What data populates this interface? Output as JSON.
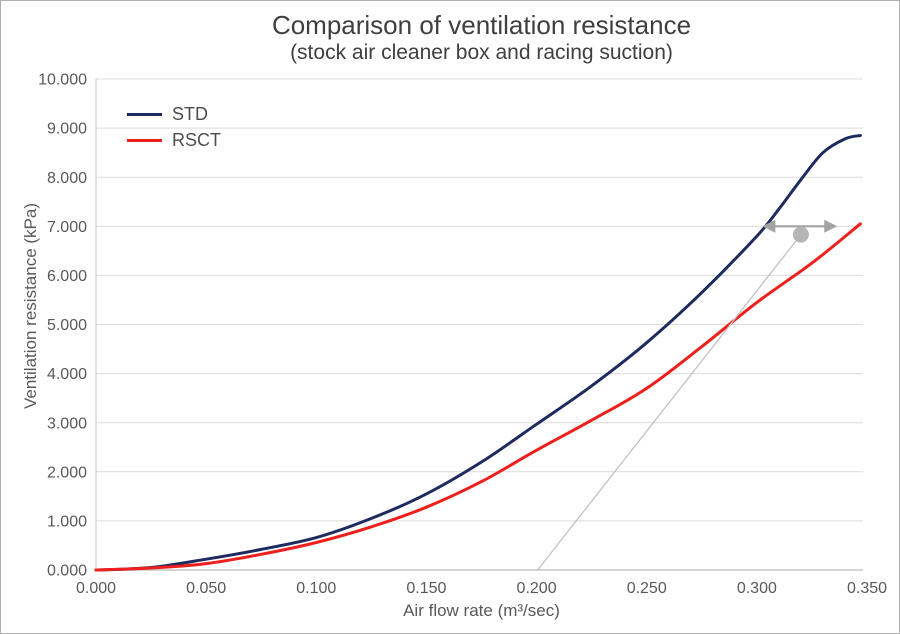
{
  "frame": {
    "border_color": "#b0b0b0",
    "background": "#ffffff"
  },
  "title": {
    "line1": "Comparison of ventilation resistance",
    "line2": "(stock air cleaner box and racing suction)",
    "color": "#3f3f3f"
  },
  "axes": {
    "x_label": "Air flow rate (m³/sec)",
    "y_label": "Ventilation resistance (kPa)",
    "label_color": "#595959",
    "tick_color": "#595959",
    "grid_color": "#dcdcdc",
    "spine_color": "#c6c6c6"
  },
  "legend": {
    "items": [
      {
        "label": "STD",
        "color": "#1e2b5e"
      },
      {
        "label": "RSCT",
        "color": "#ee1f1c"
      }
    ]
  },
  "chart_data": {
    "type": "line",
    "title": "Comparison of ventilation resistance (stock air cleaner box and racing suction)",
    "xlabel": "Air flow rate (m³/sec)",
    "ylabel": "Ventilation resistance (kPa)",
    "xlim": [
      0,
      0.35
    ],
    "ylim": [
      0,
      10
    ],
    "grid": true,
    "legend_position": "top-left-inside",
    "x_ticks": [
      0,
      0.05,
      0.1,
      0.15,
      0.2,
      0.25,
      0.3,
      0.35
    ],
    "x_tick_labels": [
      "0.000",
      "0.050",
      "0.100",
      "0.150",
      "0.200",
      "0.250",
      "0.300",
      "0.350"
    ],
    "y_ticks": [
      0,
      1,
      2,
      3,
      4,
      5,
      6,
      7,
      8,
      9,
      10
    ],
    "y_tick_labels": [
      "0.000",
      "1.000",
      "2.000",
      "3.000",
      "4.000",
      "5.000",
      "6.000",
      "7.000",
      "8.000",
      "9.000",
      "10.000"
    ],
    "series": [
      {
        "name": "STD",
        "color": "#1e2b5e",
        "points": [
          [
            0,
            0
          ],
          [
            0.025,
            0.05
          ],
          [
            0.05,
            0.22
          ],
          [
            0.075,
            0.42
          ],
          [
            0.1,
            0.66
          ],
          [
            0.125,
            1.05
          ],
          [
            0.15,
            1.55
          ],
          [
            0.175,
            2.2
          ],
          [
            0.2,
            2.97
          ],
          [
            0.225,
            3.75
          ],
          [
            0.25,
            4.63
          ],
          [
            0.275,
            5.65
          ],
          [
            0.3,
            6.8
          ],
          [
            0.31,
            7.35
          ],
          [
            0.32,
            7.95
          ],
          [
            0.33,
            8.5
          ],
          [
            0.34,
            8.78
          ],
          [
            0.347,
            8.85
          ]
        ]
      },
      {
        "name": "RSCT",
        "color": "#ee1f1c",
        "points": [
          [
            0,
            0
          ],
          [
            0.025,
            0.04
          ],
          [
            0.05,
            0.13
          ],
          [
            0.075,
            0.32
          ],
          [
            0.1,
            0.56
          ],
          [
            0.125,
            0.88
          ],
          [
            0.15,
            1.28
          ],
          [
            0.175,
            1.8
          ],
          [
            0.2,
            2.44
          ],
          [
            0.225,
            3.05
          ],
          [
            0.25,
            3.7
          ],
          [
            0.275,
            4.55
          ],
          [
            0.3,
            5.45
          ],
          [
            0.325,
            6.25
          ],
          [
            0.347,
            7.05
          ]
        ]
      }
    ],
    "annotation": {
      "guide_line": {
        "from": [
          0.2005,
          0
        ],
        "to": [
          0.32,
          6.83
        ],
        "color": "#c2c2c2"
      },
      "dot": {
        "x": 0.32,
        "y": 6.83,
        "radius_px": 8,
        "color": "#b5b5b5"
      },
      "double_arrow": {
        "y": 7.0,
        "x1": 0.3025,
        "x2": 0.3365,
        "color": "#a3a3a3"
      }
    }
  }
}
